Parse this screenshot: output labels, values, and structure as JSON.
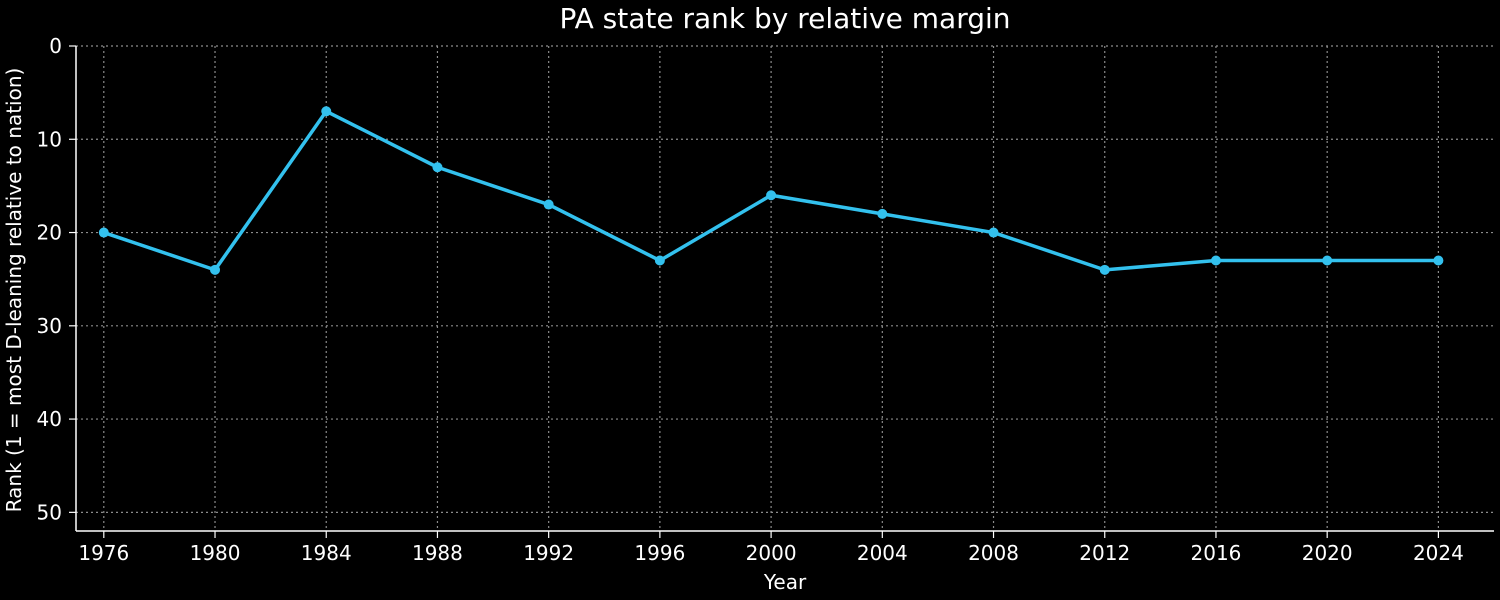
{
  "chart_data": {
    "type": "line",
    "title": "PA state rank by relative margin",
    "xlabel": "Year",
    "ylabel": "Rank (1 = most D-leaning relative to nation)",
    "x": [
      1976,
      1980,
      1984,
      1988,
      1992,
      1996,
      2000,
      2004,
      2008,
      2012,
      2016,
      2020,
      2024
    ],
    "series": [
      {
        "values": [
          20,
          24,
          7,
          13,
          17,
          23,
          16,
          18,
          20,
          24,
          23,
          23,
          23
        ]
      }
    ],
    "xticks": [
      "1976",
      "1980",
      "1984",
      "1988",
      "1992",
      "1996",
      "2000",
      "2004",
      "2008",
      "2012",
      "2016",
      "2020",
      "2024"
    ],
    "yticks": [
      0,
      10,
      20,
      30,
      40,
      50
    ],
    "xlim": [
      1975,
      2026
    ],
    "ylim": [
      52,
      0
    ],
    "y_axis_inverted": true,
    "grid": true,
    "grid_style": "dotted",
    "markers": true
  },
  "colors": {
    "background": "#000000",
    "line": "#33c1ee",
    "text": "#ffffff",
    "axis": "#ffffff",
    "grid": "#8c8c8c"
  }
}
